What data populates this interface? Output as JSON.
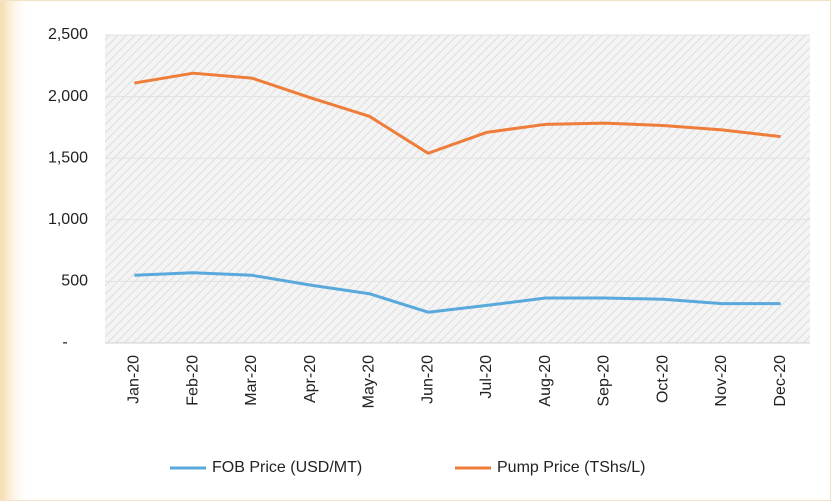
{
  "chart_data": {
    "type": "line",
    "categories": [
      "Jan-20",
      "Feb-20",
      "Mar-20",
      "Apr-20",
      "May-20",
      "Jun-20",
      "Jul-20",
      "Aug-20",
      "Sep-20",
      "Oct-20",
      "Nov-20",
      "Dec-20"
    ],
    "series": [
      {
        "name": "FOB Price (USD/MT)",
        "color": "#5aa9dc",
        "values": [
          550,
          570,
          550,
          470,
          400,
          250,
          305,
          365,
          365,
          355,
          320,
          320
        ]
      },
      {
        "name": "Pump Price (TShs/L)",
        "color": "#ee7d3a",
        "values": [
          2110,
          2190,
          2150,
          1990,
          1840,
          1540,
          1710,
          1775,
          1785,
          1765,
          1730,
          1675
        ]
      }
    ],
    "ylim": [
      0,
      2500
    ],
    "yticks": [
      {
        "value": 0,
        "label": "-"
      },
      500,
      {
        "value": 1000,
        "label": "1,000"
      },
      {
        "value": 1500,
        "label": "1,500"
      },
      {
        "value": 2000,
        "label": "2,000"
      },
      {
        "value": 2500,
        "label": "2,500"
      }
    ],
    "grid": true,
    "legend": "bottom"
  }
}
